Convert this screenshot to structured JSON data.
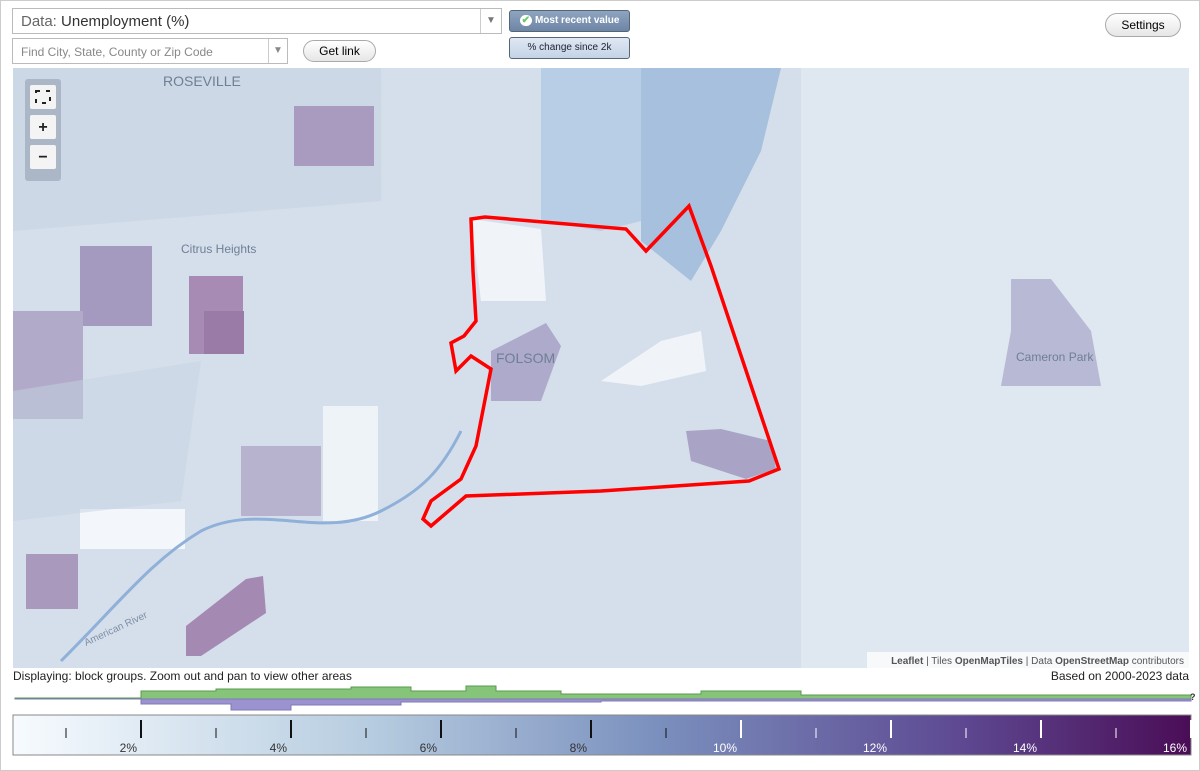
{
  "header": {
    "data_label": "Data:",
    "data_value": "Unemployment (%)",
    "search_placeholder": "Find City, State, County or Zip Code",
    "get_link": "Get link",
    "mode_buttons": [
      "Most recent value",
      "% change since 2k"
    ],
    "settings": "Settings"
  },
  "map": {
    "places": [
      "ROSEVILLE",
      "Citrus Heights",
      "FOLSOM",
      "Cameron Park",
      "American River"
    ],
    "attribution": {
      "leaflet": "Leaflet",
      "tiles_label": "Tiles",
      "tiles": "OpenMapTiles",
      "data_label": "Data",
      "data": "OpenStreetMap",
      "contributors": "contributors"
    }
  },
  "footer": {
    "displaying": "Displaying: block groups. Zoom out and pan to view other areas",
    "based_on": "Based on 2000-2023 data",
    "help": "?"
  },
  "legend": {
    "range": [
      0.32,
      16
    ],
    "ticks": [
      {
        "value": 2,
        "label": "2%"
      },
      {
        "value": 4,
        "label": "4%"
      },
      {
        "value": 6,
        "label": "6%"
      },
      {
        "value": 8,
        "label": "8%"
      },
      {
        "value": 10,
        "label": "10%"
      },
      {
        "value": 12,
        "label": "12%"
      },
      {
        "value": 14,
        "label": "14%"
      },
      {
        "value": 16,
        "label": "16%"
      }
    ],
    "minor_ticks": [
      1,
      3,
      5,
      7,
      9,
      11,
      13,
      15
    ]
  }
}
